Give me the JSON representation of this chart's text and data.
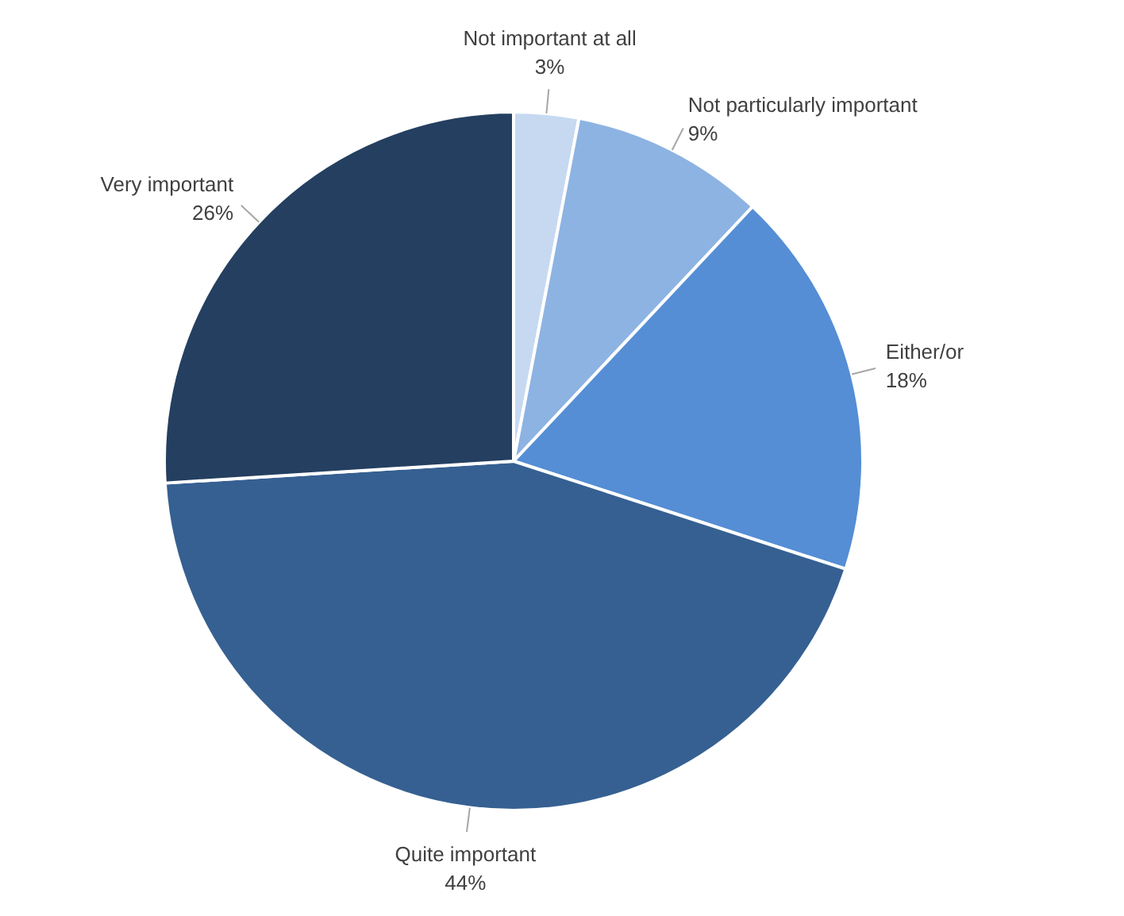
{
  "chart_data": {
    "type": "pie",
    "categories": [
      "Not important at all",
      "Not particularly important",
      "Either/or",
      "Quite important",
      "Very important"
    ],
    "values": [
      3,
      9,
      18,
      44,
      26
    ],
    "value_labels": [
      "3%",
      "9%",
      "18%",
      "44%",
      "26%"
    ],
    "colors": [
      "#c6d9f1",
      "#8db3e2",
      "#558ed5",
      "#366092",
      "#243f60"
    ]
  }
}
